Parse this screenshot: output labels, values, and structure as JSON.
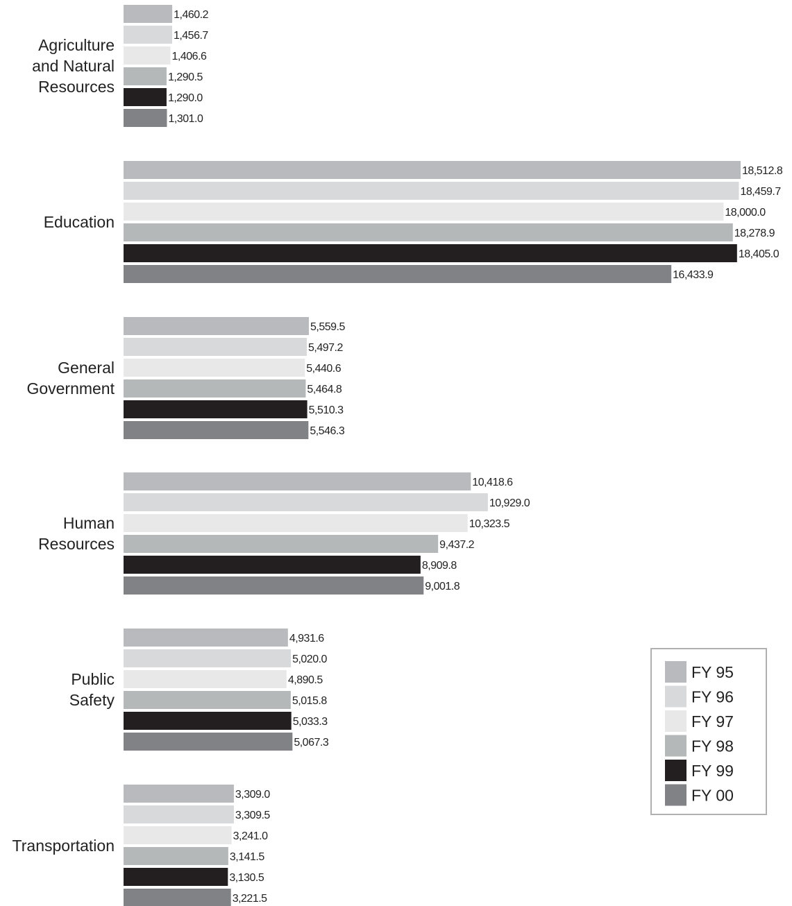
{
  "chart_data": {
    "type": "bar",
    "orientation": "horizontal",
    "categories": [
      [
        "Agriculture",
        "and Natural",
        "Resources"
      ],
      [
        "Education"
      ],
      [
        "General",
        "Government"
      ],
      [
        "Human",
        "Resources"
      ],
      [
        "Public",
        "Safety"
      ],
      [
        "Transportation"
      ]
    ],
    "series": [
      {
        "name": "FY 95",
        "color": "#b9babd",
        "values": [
          1460.2,
          18512.8,
          5559.5,
          10418.6,
          4931.6,
          3309.0
        ],
        "labels": [
          "1,460.2",
          "18,512.8",
          "5,559.5",
          "10,418.6",
          "4,931.6",
          "3,309.0"
        ]
      },
      {
        "name": "FY 96",
        "color": "#d8d9da",
        "values": [
          1456.7,
          18459.7,
          5497.2,
          10929.0,
          5020.0,
          3309.5
        ],
        "labels": [
          "1,456.7",
          "18,459.7",
          "5,497.2",
          "10,929.0",
          "5,020.0",
          "3,309.5"
        ]
      },
      {
        "name": "FY 97",
        "color": "#e8e8e9",
        "values": [
          1406.6,
          18000.0,
          5440.6,
          10323.5,
          4890.5,
          3241.0
        ],
        "labels": [
          "1,406.6",
          "18,000.0",
          "5,440.6",
          "10,323.5",
          "4,890.5",
          "3,241.0"
        ]
      },
      {
        "name": "FY 98",
        "color": "#b4b8b9",
        "values": [
          1290.5,
          18278.9,
          5464.8,
          9437.2,
          5015.8,
          3141.5
        ],
        "labels": [
          "1,290.5",
          "18,278.9",
          "5,464.8",
          "9,437.2",
          "5,015.8",
          "3,141.5"
        ]
      },
      {
        "name": "FY 99",
        "color": "#231f20",
        "values": [
          1290.0,
          18405.0,
          5510.3,
          8909.8,
          5033.3,
          3130.5
        ],
        "labels": [
          "1,290.0",
          "18,405.0",
          "5,510.3",
          "8,909.8",
          "5,033.3",
          "3,130.5"
        ]
      },
      {
        "name": "FY 00",
        "color": "#808285",
        "values": [
          1301.0,
          16433.9,
          5546.3,
          9001.8,
          5067.3,
          3221.5
        ],
        "labels": [
          "1,301.0",
          "16,433.9",
          "5,546.3",
          "9,001.8",
          "5,067.3",
          "3,221.5"
        ]
      }
    ],
    "grid": false,
    "legend": "bottom-right"
  }
}
